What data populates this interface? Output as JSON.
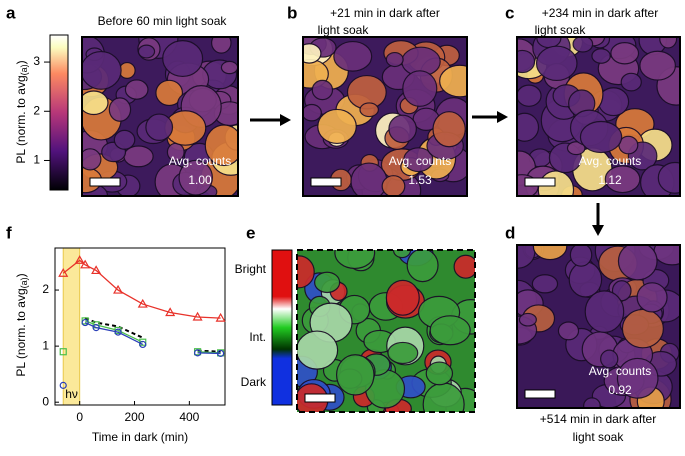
{
  "panels": {
    "a": {
      "label": "a",
      "title": "Before 60 min light soak",
      "avg_label": "Avg. counts",
      "avg_value": "1.00",
      "colorbar": {
        "label": [
          "PL (norm. to avg",
          "(a)",
          ")"
        ],
        "lim": [
          0.4,
          3.55
        ],
        "ticks": [
          1,
          2,
          3
        ]
      }
    },
    "b": {
      "label": "b",
      "title": [
        "+21 min in dark after",
        "light soak"
      ],
      "avg_label": "Avg. counts",
      "avg_value": "1.53"
    },
    "c": {
      "label": "c",
      "title": [
        "+234 min in dark after",
        "light soak"
      ],
      "avg_label": "Avg. counts",
      "avg_value": "1.12"
    },
    "d": {
      "label": "d",
      "title": [
        "+514 min in dark after",
        "light soak"
      ],
      "avg_label": "Avg. counts",
      "avg_value": "0.92"
    },
    "e": {
      "label": "e",
      "legend": [
        "Bright",
        "Int.",
        "Dark"
      ]
    },
    "f": {
      "label": "f"
    }
  },
  "chart_data": {
    "type": "line",
    "xlabel": "Time in dark (min)",
    "ylabel": [
      "PL (norm. to avg",
      "(a)",
      ")"
    ],
    "annotation": "hν",
    "shade": [
      -60,
      0
    ],
    "x": [
      -60,
      0,
      20,
      60,
      140,
      230,
      330,
      430,
      514
    ],
    "series": [
      {
        "color": "#e8322a",
        "marker": "triangle",
        "dash": false,
        "values": [
          2.3,
          2.53,
          2.45,
          2.35,
          2.0,
          1.75,
          1.6,
          1.52,
          1.5
        ]
      },
      {
        "color": "#000000",
        "marker": "none",
        "dash": true,
        "values": [
          1.0,
          null,
          1.5,
          1.42,
          1.35,
          1.15,
          null,
          0.92,
          0.9
        ]
      },
      {
        "color": "#4bbf4b",
        "marker": "square",
        "dash": false,
        "values": [
          0.9,
          null,
          1.45,
          1.38,
          1.28,
          1.07,
          null,
          0.9,
          0.88
        ]
      },
      {
        "color": "#2a3fb8",
        "marker": "circle",
        "dash": false,
        "values": [
          0.3,
          null,
          1.42,
          1.33,
          1.25,
          1.03,
          null,
          0.88,
          0.87
        ]
      }
    ],
    "xlim": [
      -90,
      530
    ],
    "xticks": [
      0,
      200,
      400
    ],
    "ylim": [
      -0.05,
      2.75
    ],
    "yticks": [
      0,
      1,
      2
    ]
  }
}
